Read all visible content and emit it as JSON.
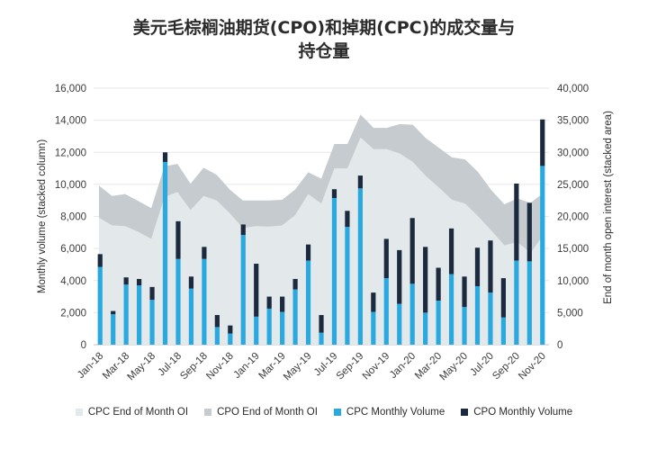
{
  "title_line1": "美元毛棕榈油期货(CPO)和掉期(CPC)的成交量与",
  "title_line2": "持仓量",
  "colors": {
    "cpc_oi": "#e3e8ea",
    "cpo_oi": "#c5cbce",
    "cpc_vol": "#2aa9e0",
    "cpo_vol": "#1b2a3e"
  },
  "legend": [
    {
      "label": "CPC End of Month OI",
      "color": "#e3e8ea"
    },
    {
      "label": "CPO End of Month OI",
      "color": "#c5cbce"
    },
    {
      "label": "CPC Monthly Volume",
      "color": "#2aa9e0"
    },
    {
      "label": "CPO Monthly Volume",
      "color": "#1b2a3e"
    }
  ],
  "chart_data": {
    "type": "bar",
    "title": "美元毛棕榈油期货(CPO)和掉期(CPC)的成交量与持仓量",
    "ylabel": "Monthly volume (stacked column)",
    "y2label": "End of month open interest (stacked area)",
    "ylim": [
      0,
      16000
    ],
    "y2lim": [
      0,
      40000
    ],
    "yticks": [
      "0",
      "2,000",
      "4,000",
      "6,000",
      "8,000",
      "10,000",
      "12,000",
      "14,000",
      "16,000"
    ],
    "y2ticks": [
      "0",
      "5,000",
      "10,000",
      "15,000",
      "20,000",
      "25,000",
      "30,000",
      "35,000",
      "40,000"
    ],
    "x_tick_labels": [
      "Jan-18",
      "Mar-18",
      "May-18",
      "Jul-18",
      "Sep-18",
      "Nov-18",
      "Jan-19",
      "Mar-19",
      "May-19",
      "Jul-19",
      "Sep-19",
      "Nov-19",
      "Jan-20",
      "Mar-20",
      "May-20",
      "Jul-20",
      "Sep-20",
      "Nov-20"
    ],
    "categories": [
      "Jan-18",
      "Feb-18",
      "Mar-18",
      "Apr-18",
      "May-18",
      "Jun-18",
      "Jul-18",
      "Aug-18",
      "Sep-18",
      "Oct-18",
      "Nov-18",
      "Dec-18",
      "Jan-19",
      "Feb-19",
      "Mar-19",
      "Apr-19",
      "May-19",
      "Jun-19",
      "Jul-19",
      "Aug-19",
      "Sep-19",
      "Oct-19",
      "Nov-19",
      "Dec-19",
      "Jan-20",
      "Feb-20",
      "Mar-20",
      "Apr-20",
      "May-20",
      "Jun-20",
      "Jul-20",
      "Aug-20",
      "Sep-20",
      "Oct-20",
      "Nov-20"
    ],
    "series": [
      {
        "name": "CPC Monthly Volume",
        "axis": "left",
        "stack": "volume",
        "values": [
          4850,
          1900,
          3750,
          3700,
          2800,
          11400,
          5350,
          3500,
          5350,
          1100,
          700,
          6850,
          1750,
          2250,
          2050,
          3450,
          5250,
          750,
          9150,
          7350,
          9750,
          2050,
          4150,
          2550,
          3800,
          2000,
          2750,
          4400,
          2350,
          3650,
          3250,
          1700,
          5250,
          5200,
          11150
        ]
      },
      {
        "name": "CPO Monthly Volume",
        "axis": "left",
        "stack": "volume",
        "values": [
          800,
          200,
          450,
          400,
          800,
          600,
          2350,
          750,
          750,
          750,
          500,
          650,
          3300,
          750,
          950,
          650,
          1000,
          1100,
          550,
          1000,
          800,
          1200,
          2450,
          3350,
          4100,
          4100,
          2050,
          2850,
          1900,
          2400,
          3250,
          2450,
          4800,
          3650,
          2900
        ]
      },
      {
        "name": "CPC End of Month OI",
        "axis": "right",
        "type": "area",
        "stack": "oi",
        "values": [
          19800,
          18600,
          18500,
          17600,
          16500,
          23000,
          23800,
          21000,
          23200,
          22500,
          20500,
          18200,
          18500,
          18400,
          18600,
          20200,
          23500,
          22000,
          27500,
          27500,
          32300,
          30500,
          30500,
          29800,
          28500,
          26300,
          24500,
          22600,
          22000,
          20000,
          17800,
          15500,
          16000,
          14300,
          17200
        ]
      },
      {
        "name": "CPO End of Month OI",
        "axis": "right",
        "type": "area",
        "stack": "oi",
        "values": [
          5000,
          4600,
          5000,
          4800,
          4800,
          4800,
          4400,
          4100,
          4400,
          4000,
          3700,
          4300,
          4000,
          4100,
          4000,
          4000,
          3400,
          3900,
          3800,
          3800,
          3600,
          3300,
          3300,
          4600,
          5800,
          5900,
          6200,
          6600,
          6900,
          6900,
          6300,
          6400,
          6800,
          7800,
          6500
        ]
      }
    ],
    "grid": true,
    "legend_position": "bottom"
  }
}
